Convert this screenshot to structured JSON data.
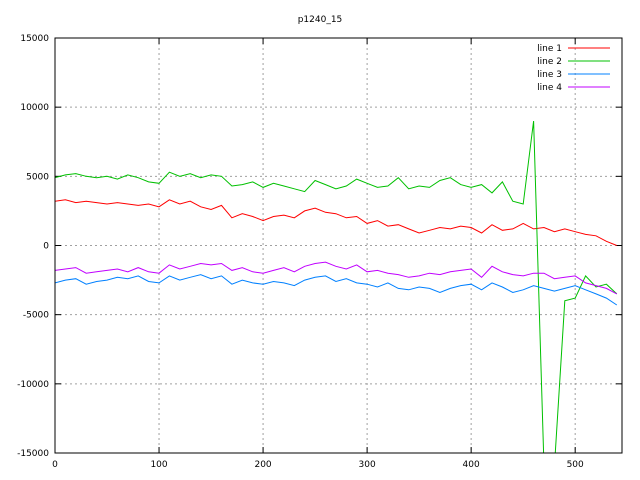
{
  "chart_data": {
    "type": "line",
    "title": "p1240_15",
    "xlabel": "",
    "ylabel": "",
    "xlim": [
      0,
      545
    ],
    "ylim": [
      -15000,
      15000
    ],
    "x_ticks": [
      "0",
      "100",
      "200",
      "300",
      "400",
      "500"
    ],
    "y_ticks": [
      "-15000",
      "-10000",
      "-5000",
      "0",
      "5000",
      "10000",
      "15000"
    ],
    "grid": true,
    "legend_position": "top-right",
    "x": [
      0,
      10,
      20,
      30,
      40,
      50,
      60,
      70,
      80,
      90,
      100,
      110,
      120,
      130,
      140,
      150,
      160,
      170,
      180,
      190,
      200,
      210,
      220,
      230,
      240,
      250,
      260,
      270,
      280,
      290,
      300,
      310,
      320,
      330,
      340,
      350,
      360,
      370,
      380,
      390,
      400,
      410,
      420,
      430,
      440,
      450,
      460,
      470,
      480,
      490,
      500,
      510,
      520,
      530,
      540
    ],
    "series": [
      {
        "name": "line 1",
        "color": "#ff0000",
        "values": [
          3200,
          3300,
          3100,
          3200,
          3100,
          3000,
          3100,
          3000,
          2900,
          3000,
          2800,
          3300,
          3000,
          3200,
          2800,
          2600,
          2900,
          2000,
          2300,
          2100,
          1800,
          2100,
          2200,
          2000,
          2500,
          2700,
          2400,
          2300,
          2000,
          2100,
          1600,
          1800,
          1400,
          1500,
          1200,
          900,
          1100,
          1300,
          1200,
          1400,
          1300,
          900,
          1500,
          1100,
          1200,
          1600,
          1200,
          1300,
          1000,
          1200,
          1000,
          800,
          700,
          300,
          0
        ]
      },
      {
        "name": "line 2",
        "color": "#00c000",
        "values": [
          4900,
          5100,
          5200,
          5000,
          4900,
          5000,
          4800,
          5100,
          4900,
          4600,
          4500,
          5300,
          5000,
          5200,
          4900,
          5100,
          5000,
          4300,
          4400,
          4600,
          4200,
          4500,
          4300,
          4100,
          3900,
          4700,
          4400,
          4100,
          4300,
          4800,
          4500,
          4200,
          4300,
          4900,
          4100,
          4300,
          4200,
          4700,
          4900,
          4400,
          4200,
          4400,
          3800,
          4600,
          3200,
          3000,
          9000,
          -16000,
          -16000,
          -4000,
          -3800,
          -2200,
          -3000,
          -2800,
          -3500
        ]
      },
      {
        "name": "line 3",
        "color": "#0080ff",
        "values": [
          -2700,
          -2500,
          -2400,
          -2800,
          -2600,
          -2500,
          -2300,
          -2400,
          -2200,
          -2600,
          -2700,
          -2200,
          -2500,
          -2300,
          -2100,
          -2400,
          -2200,
          -2800,
          -2500,
          -2700,
          -2800,
          -2600,
          -2700,
          -2900,
          -2500,
          -2300,
          -2200,
          -2600,
          -2400,
          -2700,
          -2800,
          -3000,
          -2700,
          -3100,
          -3200,
          -3000,
          -3100,
          -3400,
          -3100,
          -2900,
          -2800,
          -3200,
          -2700,
          -3000,
          -3400,
          -3200,
          -2900,
          -3100,
          -3300,
          -3100,
          -2900,
          -3200,
          -3500,
          -3800,
          -4300
        ]
      },
      {
        "name": "line 4",
        "color": "#c000ff",
        "values": [
          -1800,
          -1700,
          -1600,
          -2000,
          -1900,
          -1800,
          -1700,
          -1900,
          -1600,
          -1900,
          -2000,
          -1400,
          -1700,
          -1500,
          -1300,
          -1400,
          -1300,
          -1800,
          -1600,
          -1900,
          -2000,
          -1800,
          -1600,
          -1900,
          -1500,
          -1300,
          -1200,
          -1500,
          -1700,
          -1400,
          -1900,
          -1800,
          -2000,
          -2100,
          -2300,
          -2200,
          -2000,
          -2100,
          -1900,
          -1800,
          -1700,
          -2300,
          -1500,
          -1900,
          -2100,
          -2200,
          -2000,
          -2000,
          -2400,
          -2300,
          -2200,
          -2700,
          -2900,
          -3100,
          -3500
        ]
      }
    ]
  }
}
